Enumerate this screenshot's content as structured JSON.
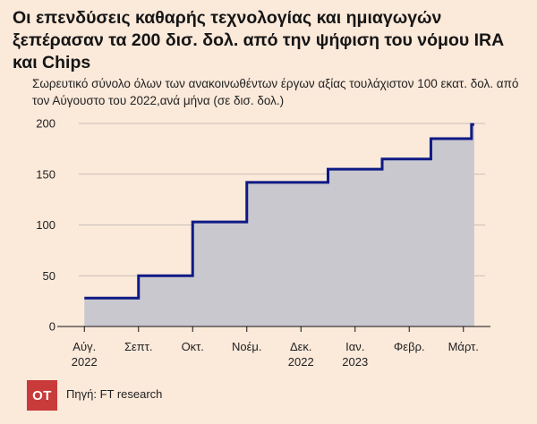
{
  "title": "Οι επενδύσεις καθαρής τεχνολογίας και ημιαγωγών ξεπέρασαν τα 200 δισ. δολ. από την ψήφιση του νόμου IRA και Chips",
  "subtitle": "Σωρευτικό σύνολο όλων των ανακοινωθέντων έργων αξίας τουλάχιστον 100 εκατ. δολ. από τον Αύγουστο του 2022,ανά μήνα (σε δισ. δολ.)",
  "logo_text": "OT",
  "source": "Πηγή: FT research",
  "colors": {
    "background": "#fbe9da",
    "area_fill": "#c8c8ce",
    "line": "#0d1a85",
    "logo_bg": "#c93a3a"
  },
  "chart_data": {
    "type": "area",
    "step": true,
    "categories": [
      "Αύγ. 2022",
      "Σεπτ.",
      "Οκτ.",
      "Νοέμ.",
      "Δεκ.",
      "Ιαν.",
      "Φεβρ.",
      "Μάρτ."
    ],
    "x_labels": [
      [
        "Αύγ.",
        "2022"
      ],
      [
        "Σεπτ."
      ],
      [
        "Οκτ."
      ],
      [
        "Νοέμ."
      ],
      [
        "Δεκ.",
        "2022"
      ],
      [
        "Ιαν.",
        "2023"
      ],
      [
        "Φεβρ."
      ],
      [
        "Μάρτ."
      ]
    ],
    "x_ticks": [
      0,
      1,
      2,
      3,
      4,
      5,
      6,
      7
    ],
    "steps": [
      {
        "x_start": 0,
        "x_end": 1,
        "value": 28
      },
      {
        "x_start": 1,
        "x_end": 2,
        "value": 50
      },
      {
        "x_start": 2,
        "x_end": 3,
        "value": 103
      },
      {
        "x_start": 3,
        "x_end": 4,
        "value": 142
      },
      {
        "x_start": 4,
        "x_end": 4.5,
        "value": 142
      },
      {
        "x_start": 4.5,
        "x_end": 5.5,
        "value": 155
      },
      {
        "x_start": 5.5,
        "x_end": 6.4,
        "value": 165
      },
      {
        "x_start": 6.4,
        "x_end": 7.15,
        "value": 185
      },
      {
        "x_start": 7.15,
        "x_end": 7.2,
        "value": 199
      }
    ],
    "yticks": [
      0,
      50,
      100,
      150,
      200
    ],
    "ylim": [
      0,
      200
    ],
    "xlim": [
      -0.5,
      7.5
    ],
    "grid": true
  }
}
